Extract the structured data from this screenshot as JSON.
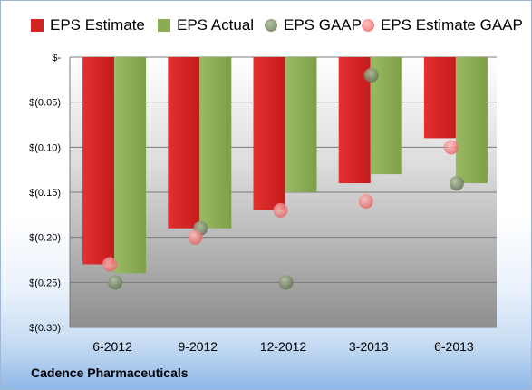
{
  "chart_data": {
    "type": "bar",
    "categories": [
      "6-2012",
      "9-2012",
      "12-2012",
      "3-2013",
      "6-2013"
    ],
    "series": [
      {
        "name": "EPS Estimate",
        "kind": "bar",
        "color": "#d32323",
        "values": [
          -0.23,
          -0.19,
          -0.17,
          -0.14,
          -0.09
        ]
      },
      {
        "name": "EPS Actual",
        "kind": "bar",
        "color": "#8aac52",
        "values": [
          -0.24,
          -0.19,
          -0.15,
          -0.13,
          -0.14
        ]
      },
      {
        "name": "EPS GAAP",
        "kind": "scatter",
        "color": "#6e7f5e",
        "values": [
          -0.25,
          -0.19,
          -0.25,
          -0.02,
          -0.14
        ]
      },
      {
        "name": "EPS Estimate GAAP",
        "kind": "scatter",
        "color": "#ee6f6f",
        "values": [
          -0.23,
          -0.2,
          -0.17,
          -0.16,
          -0.1
        ]
      }
    ],
    "ylim": [
      -0.3,
      0
    ],
    "yticks": [
      0,
      -0.05,
      -0.1,
      -0.15,
      -0.2,
      -0.25,
      -0.3
    ],
    "ytick_labels": [
      "$-",
      "$(0.05)",
      "$(0.10)",
      "$(0.15)",
      "$(0.20)",
      "$(0.25)",
      "$(0.30)"
    ],
    "grid": true,
    "legend_position": "top"
  },
  "company": "Cadence Pharmaceuticals"
}
